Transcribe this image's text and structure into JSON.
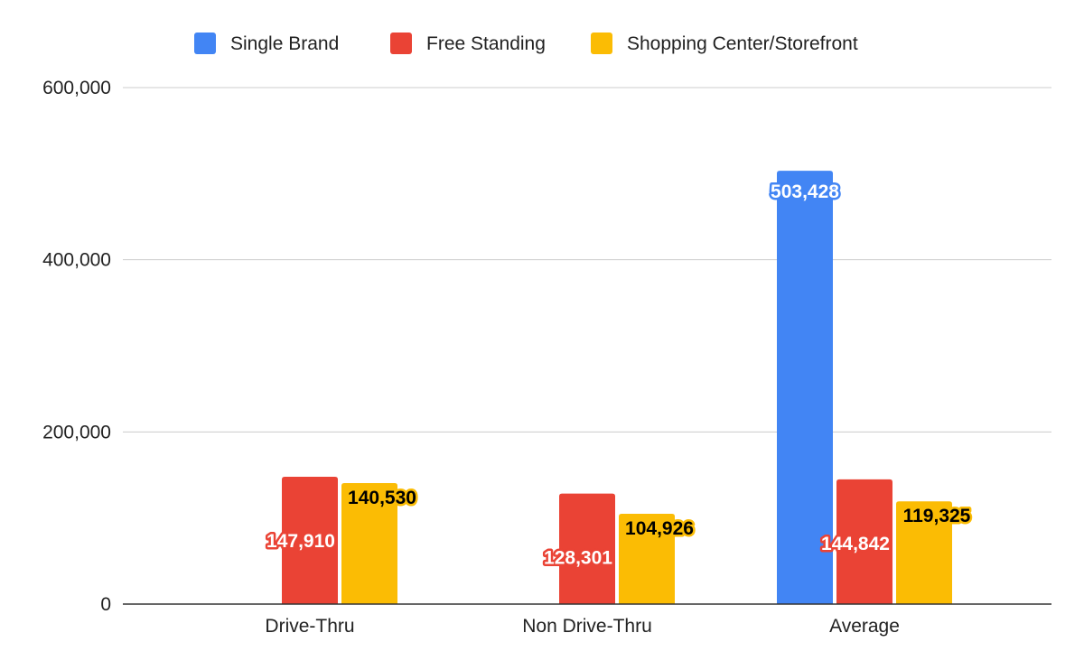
{
  "chart_data": {
    "type": "bar",
    "categories": [
      "Drive-Thru",
      "Non Drive-Thru",
      "Average"
    ],
    "series": [
      {
        "name": "Single Brand",
        "color": "#4285F4",
        "values": [
          null,
          null,
          503428
        ],
        "labels": [
          "",
          "",
          "503,428"
        ],
        "label_text_color": "#ffffff"
      },
      {
        "name": "Free Standing",
        "color": "#EA4335",
        "values": [
          147910,
          128301,
          144842
        ],
        "labels": [
          "147,910",
          "128,301",
          "144,842"
        ],
        "label_text_color": "#ffffff"
      },
      {
        "name": "Shopping Center/Storefront",
        "color": "#FBBC04",
        "values": [
          140530,
          104926,
          119325
        ],
        "labels": [
          "140,530",
          "104,926",
          "119,325"
        ],
        "label_text_color": "#000000"
      }
    ],
    "yticks": [
      0,
      200000,
      400000,
      600000
    ],
    "ytick_labels": [
      "0",
      "200,000",
      "400,000",
      "600,000"
    ],
    "ylim": [
      0,
      600000
    ],
    "grid": true,
    "legend_position": "top-center",
    "title": "",
    "xlabel": "",
    "ylabel": ""
  }
}
